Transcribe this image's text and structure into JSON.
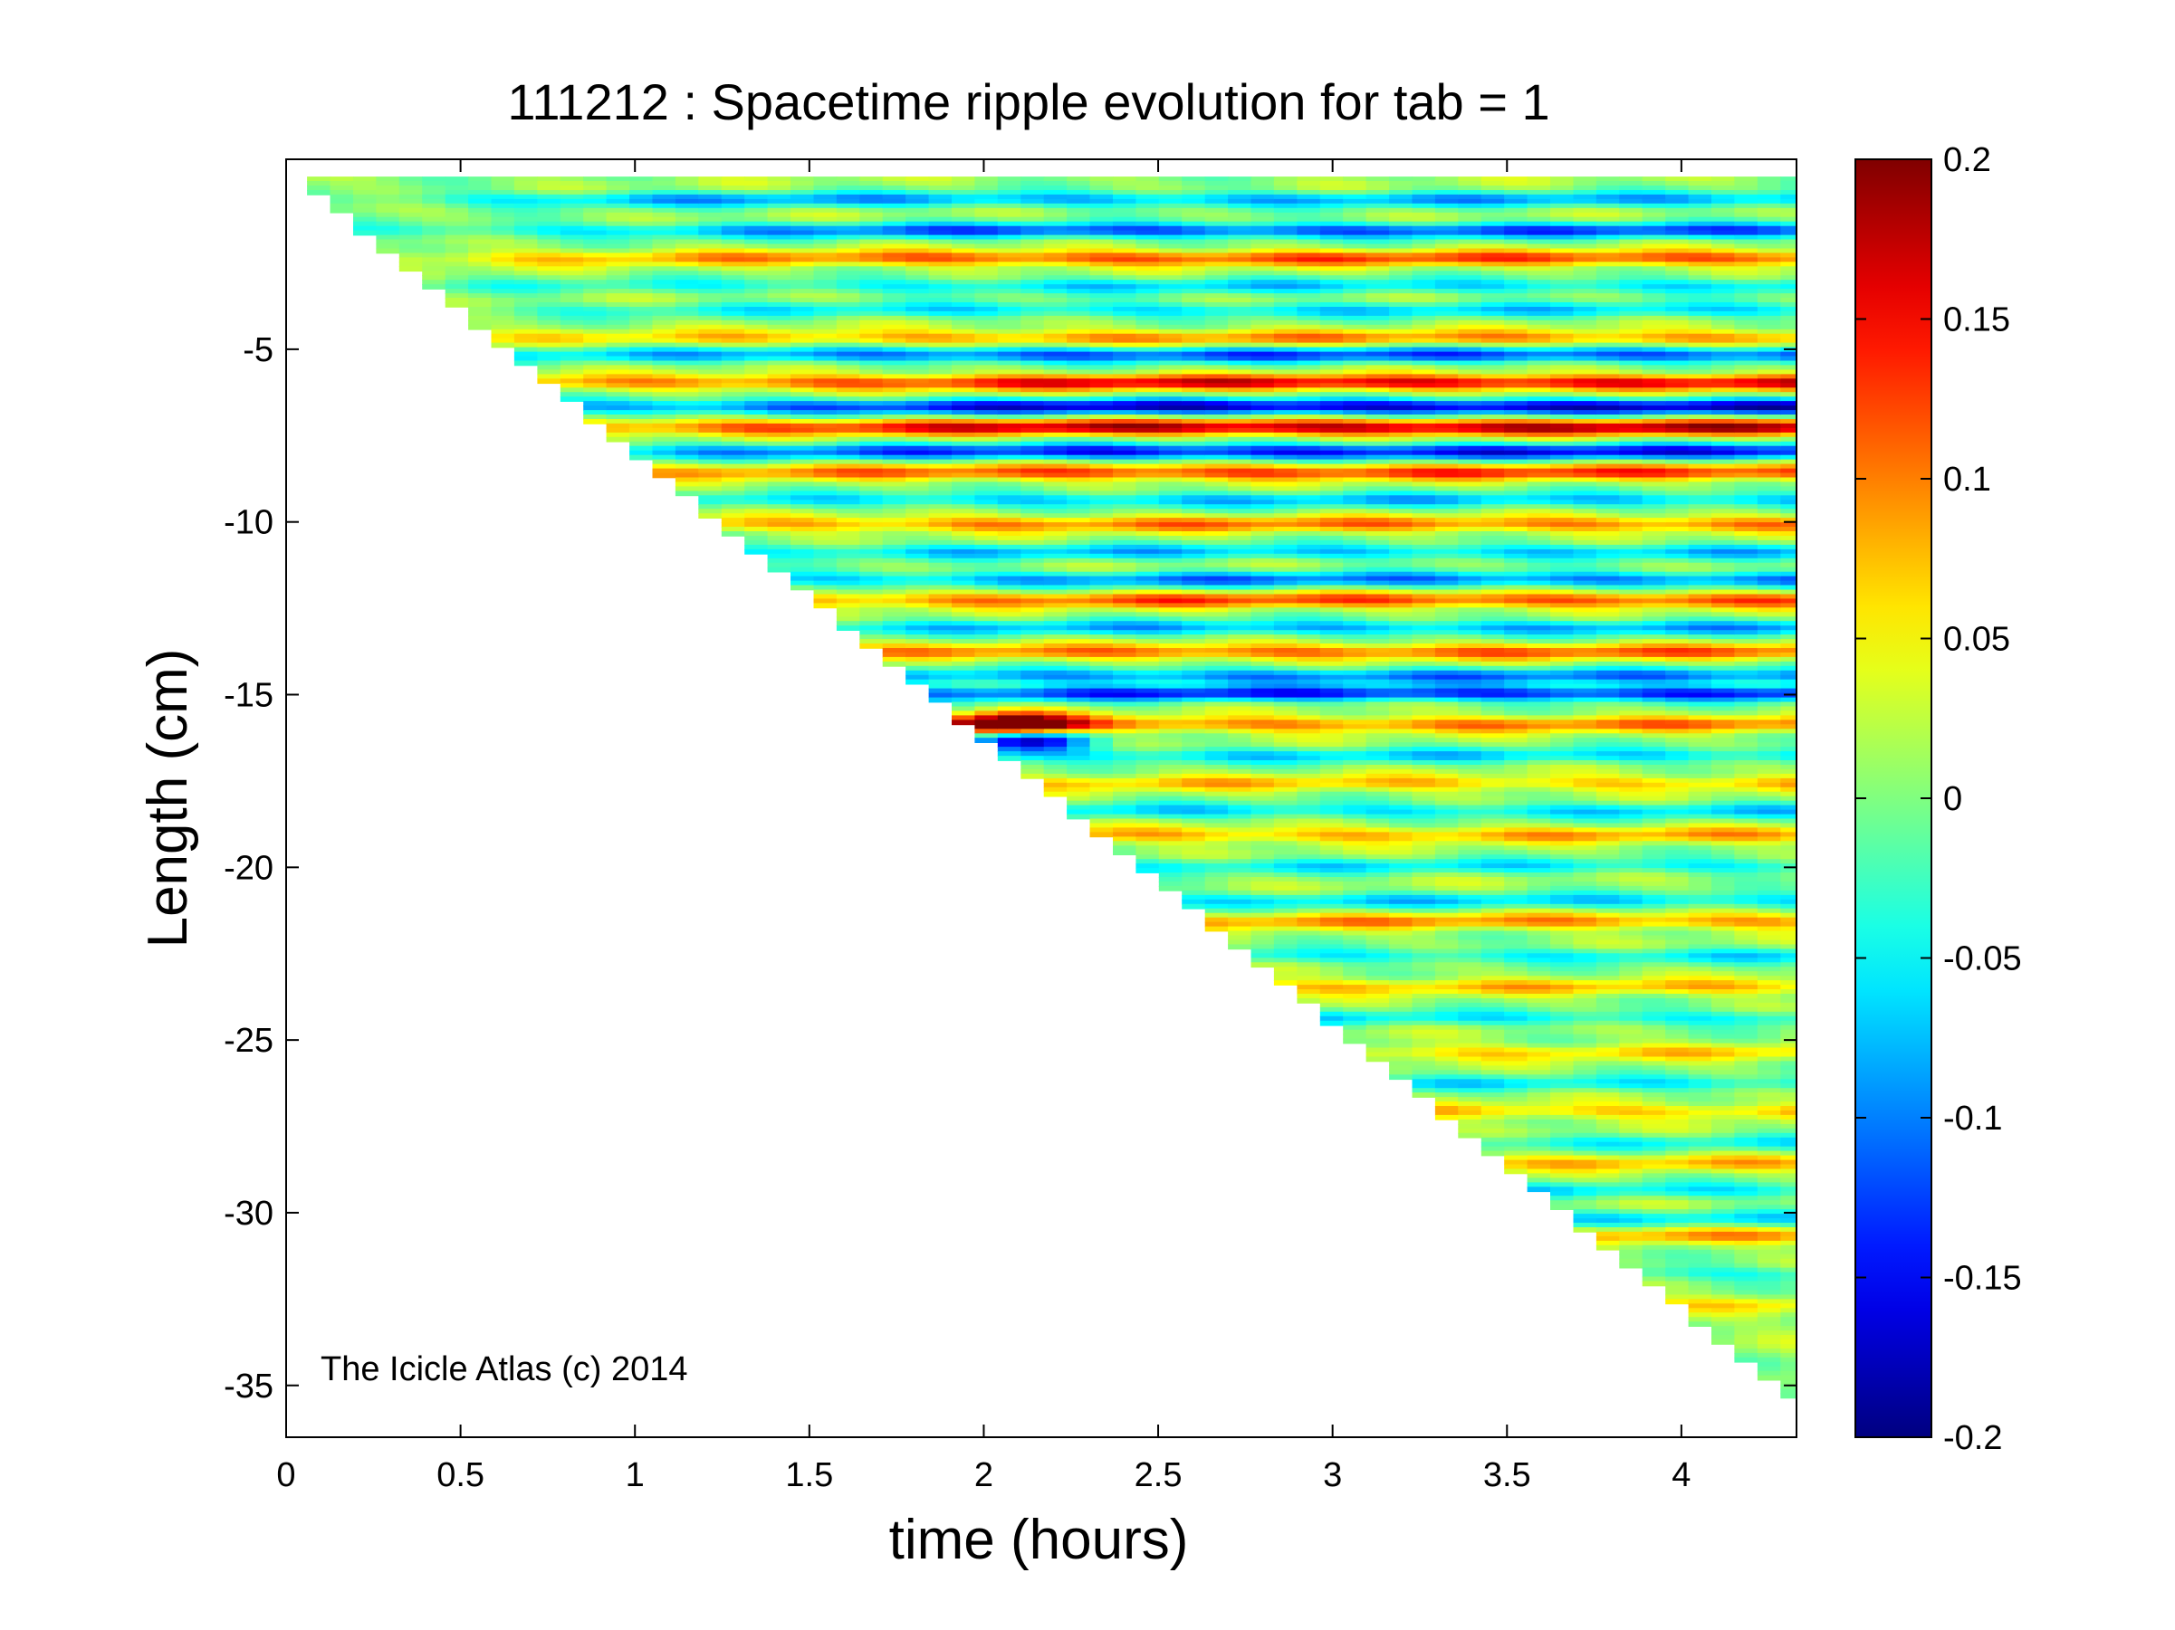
{
  "chart_data": {
    "type": "heatmap",
    "title": "111212 : Spacetime ripple evolution for tab = 1",
    "xlabel": "time (hours)",
    "ylabel": "Length (cm)",
    "annotation": "The Icicle Atlas (c) 2014",
    "xlim": [
      0,
      4.33
    ],
    "ylim": [
      -36.5,
      0.5
    ],
    "xticks": [
      0,
      0.5,
      1,
      1.5,
      2,
      2.5,
      3,
      3.5,
      4
    ],
    "xtick_labels": [
      "0",
      "0.5",
      "1",
      "1.5",
      "2",
      "2.5",
      "3",
      "3.5",
      "4"
    ],
    "yticks": [
      -5,
      -10,
      -15,
      -20,
      -25,
      -30,
      -35
    ],
    "ytick_labels": [
      "-5",
      "-10",
      "-15",
      "-20",
      "-25",
      "-30",
      "-35"
    ],
    "colorbar": {
      "colormap": "jet",
      "clim": [
        -0.2,
        0.2
      ],
      "ticks": [
        0.2,
        0.15,
        0.1,
        0.05,
        0,
        -0.05,
        -0.1,
        -0.15,
        -0.2
      ],
      "tick_labels": [
        "0.2",
        "0.15",
        "0.1",
        "0.05",
        "0",
        "-0.05",
        "-0.1",
        "-0.15",
        "-0.2"
      ]
    },
    "growth_front": {
      "description": "data exists only where length >= -8.25 * time (triangular region)",
      "slope_cm_per_hour": -8.25
    },
    "ripple_bands": [
      {
        "y0": -0.6,
        "tilt": 0.0,
        "amp": -0.09,
        "t_grow": 1.0
      },
      {
        "y0": -1.5,
        "tilt": 0.0,
        "amp": -0.13,
        "t_grow": 2.0
      },
      {
        "y0": -2.3,
        "tilt": 0.0,
        "amp": 0.11,
        "t_grow": 2.0
      },
      {
        "y0": -3.1,
        "tilt": 0.0,
        "amp": -0.07,
        "t_grow": 2.0
      },
      {
        "y0": -3.8,
        "tilt": 0.0,
        "amp": -0.07,
        "t_grow": 2.0
      },
      {
        "y0": -4.6,
        "tilt": 0.0,
        "amp": 0.08,
        "t_grow": 2.0
      },
      {
        "y0": -5.1,
        "tilt": 0.0,
        "amp": -0.13,
        "t_grow": 2.0
      },
      {
        "y0": -5.9,
        "tilt": 0.0,
        "amp": 0.15,
        "t_grow": 2.3
      },
      {
        "y0": -6.6,
        "tilt": 0.0,
        "amp": -0.18,
        "t_grow": 2.3
      },
      {
        "y0": -7.2,
        "tilt": 0.0,
        "amp": 0.17,
        "t_grow": 2.3
      },
      {
        "y0": -7.9,
        "tilt": 0.0,
        "amp": -0.16,
        "t_grow": 2.3
      },
      {
        "y0": -8.5,
        "tilt": 0.0,
        "amp": 0.12,
        "t_grow": 2.3
      },
      {
        "y0": -9.3,
        "tilt": 0.0,
        "amp": -0.08,
        "t_grow": 2.0
      },
      {
        "y0": -10.0,
        "tilt": 0.0,
        "amp": 0.09,
        "t_grow": 2.0
      },
      {
        "y0": -10.8,
        "tilt": 0.0,
        "amp": -0.08,
        "t_grow": 2.0
      },
      {
        "y0": -11.6,
        "tilt": 0.0,
        "amp": -0.11,
        "t_grow": 2.5
      },
      {
        "y0": -12.2,
        "tilt": 0.0,
        "amp": 0.11,
        "t_grow": 2.5
      },
      {
        "y0": -13.0,
        "tilt": 0.0,
        "amp": -0.09,
        "t_grow": 2.5
      },
      {
        "y0": -13.7,
        "tilt": 0.0,
        "amp": 0.1,
        "t_grow": 2.5
      },
      {
        "y0": -14.4,
        "tilt": 0.0,
        "amp": -0.11,
        "t_grow": 2.5
      },
      {
        "y0": -14.9,
        "tilt": 0.0,
        "amp": -0.15,
        "t_grow": 2.5
      },
      {
        "y0": -15.8,
        "tilt": 0.0,
        "amp": 0.09,
        "t_grow": 2.5
      },
      {
        "y0": -16.7,
        "tilt": 0.0,
        "amp": -0.07,
        "t_grow": 2.5
      },
      {
        "y0": -17.5,
        "tilt": 0.0,
        "amp": 0.06,
        "t_grow": 2.5
      },
      {
        "y0": -18.3,
        "tilt": 0.0,
        "amp": -0.07,
        "t_grow": 2.5
      },
      {
        "y0": -19.0,
        "tilt": 0.0,
        "amp": 0.07,
        "t_grow": 2.5
      },
      {
        "y0": -19.9,
        "tilt": 0.0,
        "amp": -0.06,
        "t_grow": 2.5
      },
      {
        "y0": -20.9,
        "tilt": 0.0,
        "amp": -0.07,
        "t_grow": 2.8
      },
      {
        "y0": -21.5,
        "tilt": 0.0,
        "amp": 0.08,
        "t_grow": 2.8
      },
      {
        "y0": -22.5,
        "tilt": 0.0,
        "amp": -0.06,
        "t_grow": 2.8
      },
      {
        "y0": -23.4,
        "tilt": 0.0,
        "amp": 0.06,
        "t_grow": 2.8
      },
      {
        "y0": -24.3,
        "tilt": 0.0,
        "amp": -0.06,
        "t_grow": 2.8
      },
      {
        "y0": -25.3,
        "tilt": 0.0,
        "amp": 0.05,
        "t_grow": 2.8
      },
      {
        "y0": -26.2,
        "tilt": 0.0,
        "amp": -0.06,
        "t_grow": 3.2
      },
      {
        "y0": -27.0,
        "tilt": 0.0,
        "amp": 0.06,
        "t_grow": 3.2
      },
      {
        "y0": -27.9,
        "tilt": 0.0,
        "amp": -0.05,
        "t_grow": 3.2
      },
      {
        "y0": -28.5,
        "tilt": 0.0,
        "amp": 0.06,
        "t_grow": 3.4
      },
      {
        "y0": -29.3,
        "tilt": 0.0,
        "amp": -0.06,
        "t_grow": 3.4
      },
      {
        "y0": -30.1,
        "tilt": 0.0,
        "amp": -0.06,
        "t_grow": 3.6
      },
      {
        "y0": -30.6,
        "tilt": 0.0,
        "amp": 0.07,
        "t_grow": 3.6
      },
      {
        "y0": -31.7,
        "tilt": 0.0,
        "amp": -0.05,
        "t_grow": 3.8
      },
      {
        "y0": -32.6,
        "tilt": 0.0,
        "amp": 0.04,
        "t_grow": 3.9
      }
    ],
    "hotspots": [
      {
        "t": 2.05,
        "y": -15.8,
        "amp": 0.22,
        "width_t": 0.18,
        "width_y": 0.35
      },
      {
        "t": 2.1,
        "y": -16.25,
        "amp": -0.19,
        "width_t": 0.18,
        "width_y": 0.3
      }
    ]
  }
}
